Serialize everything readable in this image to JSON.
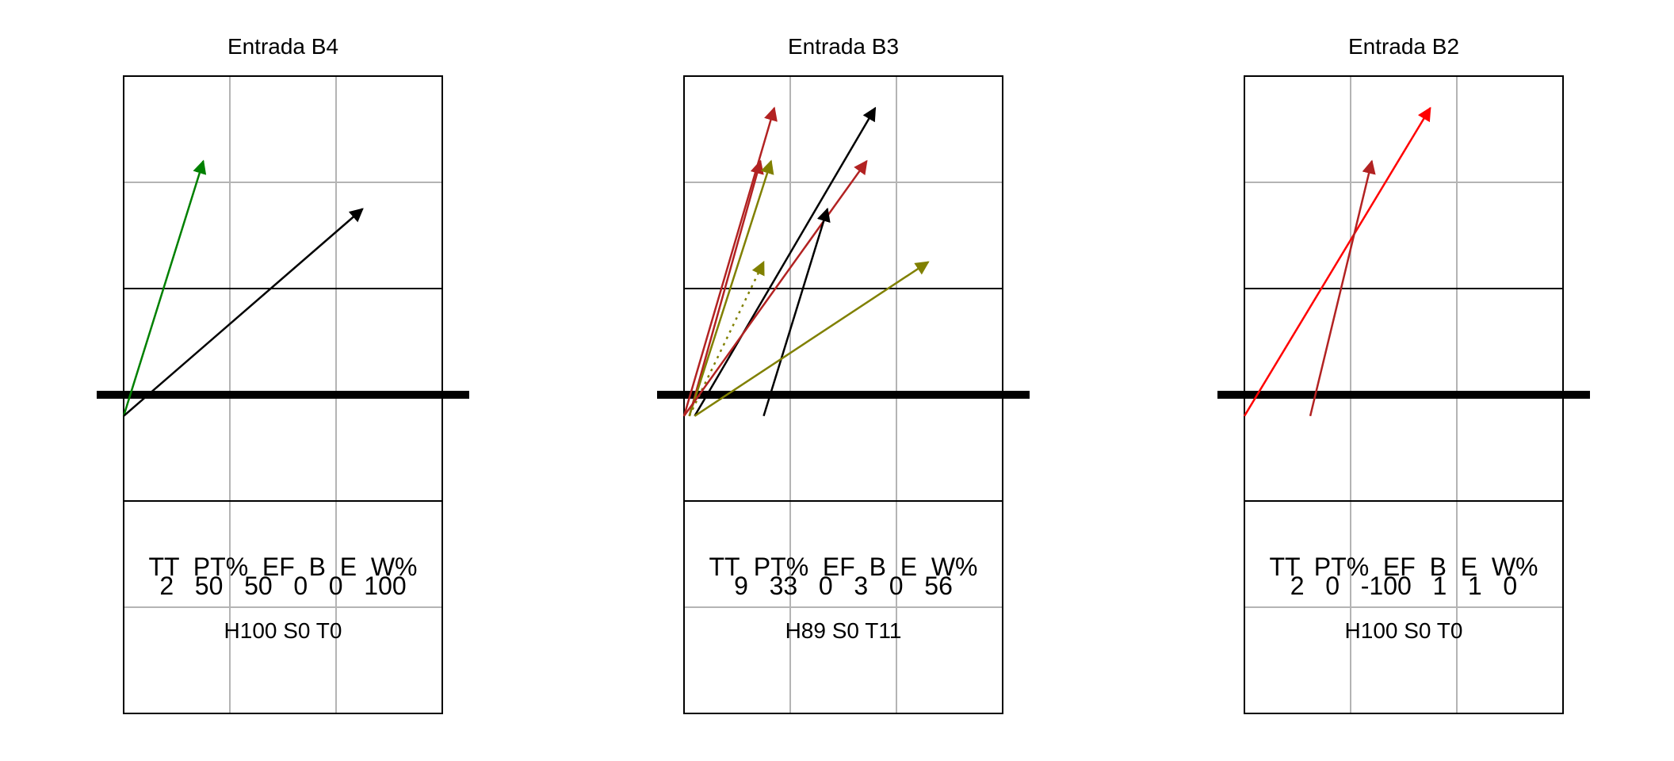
{
  "panels": [
    {
      "title": "Entrada B4",
      "stats_header": "TT  PT%  EF  B  E  W%",
      "stats_values": "2   50   50   0   0   100",
      "summary": "H100 S0 T0",
      "arrows": [
        {
          "from": [
            0.0,
            -0.2
          ],
          "to": [
            0.75,
            2.2
          ],
          "color": "#008000",
          "style": "solid"
        },
        {
          "from": [
            0.0,
            -0.2
          ],
          "to": [
            2.25,
            1.75
          ],
          "color": "#000000",
          "style": "solid"
        }
      ]
    },
    {
      "title": "Entrada B3",
      "stats_header": "TT  PT%  EF  B  E  W%",
      "stats_values": "9   33   0   3   0   56",
      "summary": "H89 S0 T11",
      "arrows": [
        {
          "from": [
            0.0,
            -0.2
          ],
          "to": [
            0.85,
            2.7
          ],
          "color": "#B22222",
          "style": "solid"
        },
        {
          "from": [
            0.05,
            -0.2
          ],
          "to": [
            0.72,
            2.2
          ],
          "color": "#B22222",
          "style": "solid"
        },
        {
          "from": [
            0.05,
            -0.2
          ],
          "to": [
            0.82,
            2.2
          ],
          "color": "#808000",
          "style": "solid"
        },
        {
          "from": [
            0.05,
            -0.2
          ],
          "to": [
            0.75,
            1.25
          ],
          "color": "#808000",
          "style": "dotted"
        },
        {
          "from": [
            0.1,
            -0.2
          ],
          "to": [
            1.8,
            2.7
          ],
          "color": "#000000",
          "style": "solid"
        },
        {
          "from": [
            0.0,
            -0.2
          ],
          "to": [
            1.72,
            2.2
          ],
          "color": "#B22222",
          "style": "solid"
        },
        {
          "from": [
            0.75,
            -0.2
          ],
          "to": [
            1.35,
            1.75
          ],
          "color": "#000000",
          "style": "solid"
        },
        {
          "from": [
            0.1,
            -0.2
          ],
          "to": [
            2.3,
            1.25
          ],
          "color": "#808000",
          "style": "solid"
        }
      ]
    },
    {
      "title": "Entrada B2",
      "stats_header": "TT  PT%  EF  B  E  W%",
      "stats_values": "2   0   -100   1   1   0",
      "summary": "H100 S0 T0",
      "arrows": [
        {
          "from": [
            0.0,
            -0.2
          ],
          "to": [
            1.75,
            2.7
          ],
          "color": "#FF0000",
          "style": "solid"
        },
        {
          "from": [
            0.62,
            -0.2
          ],
          "to": [
            1.2,
            2.2
          ],
          "color": "#B22222",
          "style": "solid"
        }
      ]
    }
  ]
}
